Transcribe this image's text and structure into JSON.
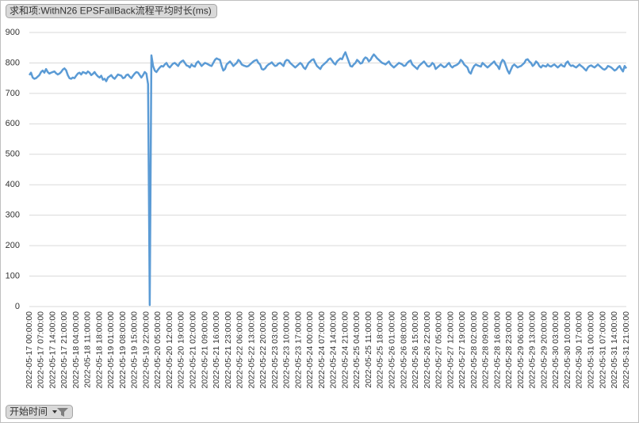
{
  "chart_data": {
    "type": "line",
    "title": "求和项:WithN26 EPSFallBack流程平均时长(ms)",
    "xlabel": "开始时间",
    "color": "#5b9bd5",
    "grid": true,
    "ylim": [
      0,
      900
    ],
    "yticks": [
      0,
      100,
      200,
      300,
      400,
      500,
      600,
      700,
      800,
      900
    ],
    "categories": [
      "2022-05-17 00:00:00",
      null,
      null,
      null,
      null,
      null,
      null,
      "2022-05-17 07:00:00",
      null,
      null,
      null,
      null,
      null,
      null,
      "2022-05-17 14:00:00",
      null,
      null,
      null,
      null,
      null,
      null,
      "2022-05-17 21:00:00",
      null,
      null,
      null,
      null,
      null,
      null,
      "2022-05-18 04:00:00",
      null,
      null,
      null,
      null,
      null,
      null,
      "2022-05-18 11:00:00",
      null,
      null,
      null,
      null,
      null,
      null,
      "2022-05-18 18:00:00",
      null,
      null,
      null,
      null,
      null,
      null,
      "2022-05-19 01:00:00",
      null,
      null,
      null,
      null,
      null,
      null,
      "2022-05-19 08:00:00",
      null,
      null,
      null,
      null,
      null,
      null,
      "2022-05-19 15:00:00",
      null,
      null,
      null,
      null,
      null,
      null,
      "2022-05-19 22:00:00",
      null,
      null,
      null,
      null,
      null,
      null,
      "2022-05-20 05:00:00",
      null,
      null,
      null,
      null,
      null,
      null,
      "2022-05-20 12:00:00",
      null,
      null,
      null,
      null,
      null,
      null,
      "2022-05-20 19:00:00",
      null,
      null,
      null,
      null,
      null,
      null,
      "2022-05-21 02:00:00",
      null,
      null,
      null,
      null,
      null,
      null,
      "2022-05-21 09:00:00",
      null,
      null,
      null,
      null,
      null,
      null,
      "2022-05-21 16:00:00",
      null,
      null,
      null,
      null,
      null,
      null,
      "2022-05-21 23:00:00",
      null,
      null,
      null,
      null,
      null,
      null,
      "2022-05-22 06:00:00",
      null,
      null,
      null,
      null,
      null,
      null,
      "2022-05-22 13:00:00",
      null,
      null,
      null,
      null,
      null,
      null,
      "2022-05-22 20:00:00",
      null,
      null,
      null,
      null,
      null,
      null,
      "2022-05-23 03:00:00",
      null,
      null,
      null,
      null,
      null,
      null,
      "2022-05-23 10:00:00",
      null,
      null,
      null,
      null,
      null,
      null,
      "2022-05-23 17:00:00",
      null,
      null,
      null,
      null,
      null,
      null,
      "2022-05-24 00:00:00",
      null,
      null,
      null,
      null,
      null,
      null,
      "2022-05-24 07:00:00",
      null,
      null,
      null,
      null,
      null,
      null,
      "2022-05-24 14:00:00",
      null,
      null,
      null,
      null,
      null,
      null,
      "2022-05-24 21:00:00",
      null,
      null,
      null,
      null,
      null,
      null,
      "2022-05-25 04:00:00",
      null,
      null,
      null,
      null,
      null,
      null,
      "2022-05-25 11:00:00",
      null,
      null,
      null,
      null,
      null,
      null,
      "2022-05-25 18:00:00",
      null,
      null,
      null,
      null,
      null,
      null,
      "2022-05-26 01:00:00",
      null,
      null,
      null,
      null,
      null,
      null,
      "2022-05-26 08:00:00",
      null,
      null,
      null,
      null,
      null,
      null,
      "2022-05-26 15:00:00",
      null,
      null,
      null,
      null,
      null,
      null,
      "2022-05-26 22:00:00",
      null,
      null,
      null,
      null,
      null,
      null,
      "2022-05-27 05:00:00",
      null,
      null,
      null,
      null,
      null,
      null,
      "2022-05-27 12:00:00",
      null,
      null,
      null,
      null,
      null,
      null,
      "2022-05-27 19:00:00",
      null,
      null,
      null,
      null,
      null,
      null,
      "2022-05-28 02:00:00",
      null,
      null,
      null,
      null,
      null,
      null,
      "2022-05-28 09:00:00",
      null,
      null,
      null,
      null,
      null,
      null,
      "2022-05-28 16:00:00",
      null,
      null,
      null,
      null,
      null,
      null,
      "2022-05-28 23:00:00",
      null,
      null,
      null,
      null,
      null,
      null,
      "2022-05-29 06:00:00",
      null,
      null,
      null,
      null,
      null,
      null,
      "2022-05-29 13:00:00",
      null,
      null,
      null,
      null,
      null,
      null,
      "2022-05-29 20:00:00",
      null,
      null,
      null,
      null,
      null,
      null,
      "2022-05-30 03:00:00",
      null,
      null,
      null,
      null,
      null,
      null,
      "2022-05-30 10:00:00",
      null,
      null,
      null,
      null,
      null,
      null,
      "2022-05-30 17:00:00",
      null,
      null,
      null,
      null,
      null,
      null,
      "2022-05-31 00:00:00",
      null,
      null,
      null,
      null,
      null,
      null,
      "2022-05-31 07:00:00",
      null,
      null,
      null,
      null,
      null,
      null,
      "2022-05-31 14:00:00",
      null,
      null,
      null,
      null,
      null,
      null,
      "2022-05-31 21:00:00"
    ],
    "values": [
      760,
      768,
      752,
      748,
      750,
      755,
      760,
      770,
      775,
      768,
      780,
      770,
      765,
      768,
      770,
      772,
      766,
      762,
      765,
      770,
      778,
      782,
      776,
      760,
      750,
      748,
      752,
      750,
      758,
      765,
      768,
      762,
      770,
      768,
      765,
      772,
      768,
      760,
      764,
      770,
      762,
      756,
      752,
      758,
      745,
      748,
      740,
      752,
      756,
      760,
      752,
      748,
      755,
      762,
      760,
      758,
      750,
      752,
      760,
      762,
      755,
      750,
      758,
      765,
      770,
      768,
      760,
      752,
      760,
      770,
      765,
      730,
      5,
      825,
      790,
      775,
      770,
      778,
      785,
      790,
      788,
      795,
      800,
      790,
      785,
      792,
      798,
      800,
      795,
      790,
      800,
      805,
      808,
      800,
      792,
      790,
      785,
      795,
      790,
      788,
      800,
      805,
      798,
      790,
      795,
      800,
      798,
      795,
      792,
      790,
      800,
      810,
      815,
      812,
      810,
      790,
      775,
      780,
      795,
      800,
      805,
      798,
      790,
      795,
      800,
      810,
      805,
      795,
      792,
      790,
      788,
      790,
      795,
      800,
      805,
      808,
      810,
      800,
      795,
      780,
      778,
      782,
      790,
      795,
      798,
      802,
      795,
      790,
      792,
      798,
      800,
      795,
      790,
      805,
      810,
      808,
      800,
      795,
      790,
      785,
      790,
      795,
      800,
      795,
      785,
      780,
      790,
      800,
      805,
      810,
      812,
      800,
      790,
      785,
      780,
      790,
      795,
      800,
      805,
      812,
      815,
      808,
      800,
      795,
      805,
      810,
      815,
      812,
      825,
      835,
      820,
      805,
      790,
      788,
      795,
      800,
      810,
      805,
      798,
      800,
      812,
      818,
      815,
      805,
      810,
      820,
      828,
      822,
      815,
      810,
      805,
      800,
      798,
      795,
      800,
      805,
      795,
      790,
      785,
      790,
      795,
      800,
      798,
      795,
      790,
      792,
      800,
      805,
      808,
      795,
      790,
      785,
      780,
      790,
      795,
      800,
      805,
      798,
      790,
      788,
      792,
      800,
      795,
      780,
      785,
      790,
      795,
      790,
      786,
      788,
      795,
      800,
      790,
      785,
      790,
      792,
      795,
      800,
      810,
      805,
      795,
      790,
      785,
      770,
      765,
      780,
      790,
      795,
      792,
      790,
      788,
      800,
      795,
      790,
      785,
      790,
      795,
      800,
      805,
      795,
      790,
      780,
      800,
      810,
      805,
      790,
      775,
      765,
      778,
      790,
      795,
      790,
      785,
      788,
      790,
      795,
      800,
      810,
      812,
      805,
      800,
      790,
      795,
      805,
      800,
      790,
      785,
      792,
      790,
      788,
      795,
      790,
      788,
      792,
      795,
      790,
      785,
      790,
      795,
      790,
      788,
      800,
      805,
      795,
      790,
      792,
      788,
      785,
      790,
      795,
      790,
      786,
      780,
      775,
      785,
      790,
      792,
      788,
      785,
      790,
      795,
      790,
      785,
      780,
      778,
      782,
      790,
      788,
      785,
      780,
      775,
      778,
      785,
      790,
      780,
      772,
      790,
      782
    ]
  }
}
